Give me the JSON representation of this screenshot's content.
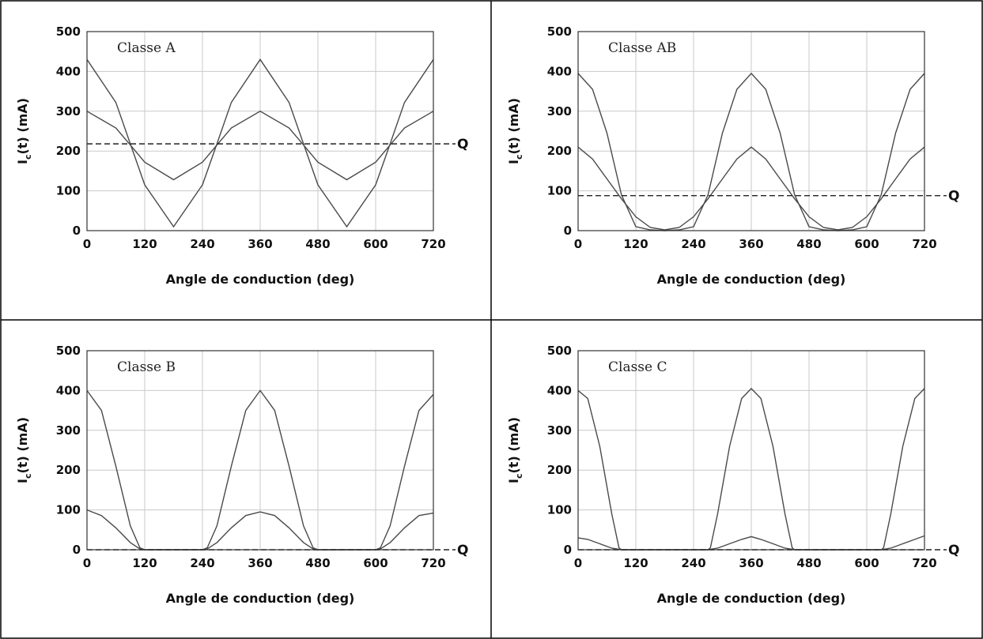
{
  "chart_data": [
    {
      "type": "line",
      "title": "Classe A",
      "xlabel": "Angle de conduction  (deg)",
      "ylabel_main": "I",
      "ylabel_sub": "c",
      "ylabel_rest": "(t)  (mA)",
      "xlim": [
        0,
        720
      ],
      "ylim": [
        0,
        500
      ],
      "xticks": [
        0,
        120,
        240,
        360,
        480,
        600,
        720
      ],
      "yticks": [
        0,
        100,
        200,
        300,
        400,
        500
      ],
      "grid": true,
      "series": [
        {
          "x": [
            0,
            60,
            90,
            120,
            180,
            240,
            270,
            300,
            360,
            420,
            450,
            480,
            540,
            600,
            630,
            660,
            720
          ],
          "y": [
            430,
            322,
            218,
            115,
            10,
            115,
            218,
            322,
            430,
            322,
            218,
            115,
            10,
            115,
            218,
            322,
            430
          ]
        },
        {
          "x": [
            0,
            60,
            90,
            120,
            180,
            240,
            270,
            300,
            360,
            420,
            450,
            480,
            540,
            600,
            630,
            660,
            720
          ],
          "y": [
            300,
            258,
            215,
            172,
            128,
            172,
            215,
            258,
            300,
            258,
            215,
            172,
            128,
            172,
            215,
            258,
            300
          ]
        }
      ],
      "q_level": 218,
      "q_label": "Q"
    },
    {
      "type": "line",
      "title": "Classe AB",
      "xlabel": "Angle de conduction  (deg)",
      "ylabel_main": "I",
      "ylabel_sub": "c",
      "ylabel_rest": "(t)  (mA)",
      "xlim": [
        0,
        720
      ],
      "ylim": [
        0,
        500
      ],
      "xticks": [
        0,
        120,
        240,
        360,
        480,
        600,
        720
      ],
      "yticks": [
        0,
        100,
        200,
        300,
        400,
        500
      ],
      "grid": true,
      "series": [
        {
          "x": [
            0,
            30,
            60,
            90,
            120,
            150,
            180,
            210,
            240,
            270,
            300,
            330,
            360,
            390,
            420,
            450,
            480,
            510,
            540,
            570,
            600,
            630,
            660,
            690,
            720
          ],
          "y": [
            395,
            355,
            245,
            90,
            10,
            2,
            0,
            2,
            10,
            90,
            245,
            355,
            395,
            355,
            245,
            90,
            10,
            2,
            0,
            2,
            10,
            90,
            245,
            355,
            395
          ]
        },
        {
          "x": [
            0,
            30,
            60,
            90,
            120,
            150,
            180,
            210,
            240,
            270,
            300,
            330,
            360,
            390,
            420,
            450,
            480,
            510,
            540,
            570,
            600,
            630,
            660,
            690,
            720
          ],
          "y": [
            210,
            180,
            130,
            80,
            35,
            8,
            2,
            8,
            35,
            80,
            130,
            180,
            210,
            180,
            130,
            80,
            35,
            8,
            2,
            8,
            35,
            80,
            130,
            180,
            210
          ]
        }
      ],
      "q_level": 88,
      "q_label": "Q"
    },
    {
      "type": "line",
      "title": "Classe B",
      "xlabel": "Angle de conduction  (deg)",
      "ylabel_main": "I",
      "ylabel_sub": "c",
      "ylabel_rest": "(t)  (mA)",
      "xlim": [
        0,
        720
      ],
      "ylim": [
        0,
        500
      ],
      "xticks": [
        0,
        120,
        240,
        360,
        480,
        600,
        720
      ],
      "yticks": [
        0,
        100,
        200,
        300,
        400,
        500
      ],
      "grid": true,
      "series": [
        {
          "x": [
            0,
            30,
            60,
            90,
            110,
            120,
            180,
            240,
            250,
            270,
            300,
            330,
            360,
            390,
            420,
            450,
            470,
            480,
            540,
            600,
            610,
            630,
            660,
            690,
            720
          ],
          "y": [
            400,
            350,
            210,
            60,
            5,
            0,
            0,
            0,
            5,
            60,
            210,
            350,
            400,
            350,
            210,
            60,
            5,
            0,
            0,
            0,
            5,
            60,
            210,
            350,
            390
          ]
        },
        {
          "x": [
            0,
            30,
            60,
            90,
            110,
            120,
            180,
            240,
            250,
            270,
            300,
            330,
            360,
            390,
            420,
            450,
            470,
            480,
            540,
            600,
            610,
            630,
            660,
            690,
            720
          ],
          "y": [
            100,
            86,
            55,
            18,
            2,
            0,
            0,
            0,
            2,
            18,
            55,
            86,
            95,
            86,
            55,
            18,
            2,
            0,
            0,
            0,
            2,
            18,
            55,
            86,
            92
          ]
        }
      ],
      "q_level": 0,
      "q_label": "Q"
    },
    {
      "type": "line",
      "title": "Classe C",
      "xlabel": "Angle de conduction  (deg)",
      "ylabel_main": "I",
      "ylabel_sub": "c",
      "ylabel_rest": "(t)  (mA)",
      "xlim": [
        0,
        720
      ],
      "ylim": [
        0,
        500
      ],
      "xticks": [
        0,
        120,
        240,
        360,
        480,
        600,
        720
      ],
      "yticks": [
        0,
        100,
        200,
        300,
        400,
        500
      ],
      "grid": true,
      "series": [
        {
          "x": [
            0,
            20,
            45,
            70,
            85,
            90,
            180,
            270,
            275,
            290,
            315,
            340,
            360,
            380,
            405,
            430,
            445,
            450,
            540,
            630,
            635,
            650,
            675,
            700,
            720
          ],
          "y": [
            400,
            380,
            260,
            90,
            5,
            0,
            0,
            0,
            5,
            90,
            260,
            380,
            405,
            380,
            260,
            90,
            5,
            0,
            0,
            0,
            5,
            90,
            260,
            380,
            405
          ]
        },
        {
          "x": [
            0,
            20,
            45,
            70,
            90,
            180,
            270,
            290,
            315,
            340,
            360,
            380,
            405,
            430,
            450,
            540,
            630,
            650,
            675,
            700,
            720
          ],
          "y": [
            30,
            26,
            15,
            4,
            0,
            0,
            0,
            4,
            15,
            26,
            33,
            26,
            15,
            4,
            0,
            0,
            0,
            4,
            15,
            26,
            35
          ]
        }
      ],
      "q_level": 0,
      "q_label": "Q"
    }
  ]
}
